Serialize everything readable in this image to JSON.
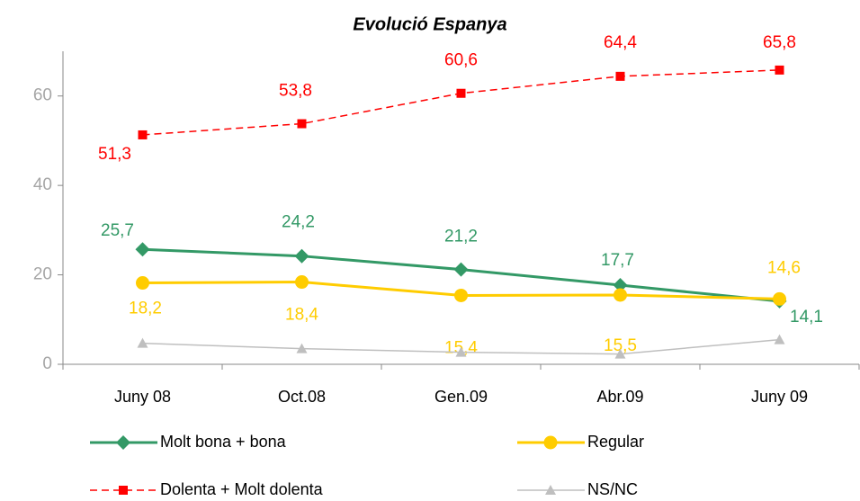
{
  "chart_data": {
    "type": "line",
    "title": "Evolució Espanya",
    "categories": [
      "Juny 08",
      "Oct.08",
      "Gen.09",
      "Abr.09",
      "Juny 09"
    ],
    "series": [
      {
        "name": "Molt bona + bona",
        "color": "#339966",
        "marker": "diamond",
        "values": [
          25.7,
          24.2,
          21.2,
          17.7,
          14.1
        ],
        "value_labels": [
          "25,7",
          "24,2",
          "21,2",
          "17,7",
          "14,1"
        ]
      },
      {
        "name": "Regular",
        "color": "#ffcc00",
        "marker": "circle",
        "values": [
          18.2,
          18.4,
          15.4,
          15.5,
          14.6
        ],
        "value_labels": [
          "18,2",
          "18,4",
          "15,4",
          "15,5",
          "14,6"
        ]
      },
      {
        "name": "Dolenta + Molt dolenta",
        "color": "#ff0000",
        "marker": "square",
        "dashed": true,
        "values": [
          51.3,
          53.8,
          60.6,
          64.4,
          65.8
        ],
        "value_labels": [
          "51,3",
          "53,8",
          "60,6",
          "64,4",
          "65,8"
        ]
      },
      {
        "name": "NS/NC",
        "color": "#bfbfbf",
        "marker": "triangle",
        "values": [
          4.7,
          3.5,
          2.7,
          2.3,
          5.5
        ]
      }
    ],
    "ylim": [
      0,
      70
    ],
    "yticks": [
      0,
      20,
      40,
      60
    ],
    "grid": false,
    "legend": "bottom"
  }
}
